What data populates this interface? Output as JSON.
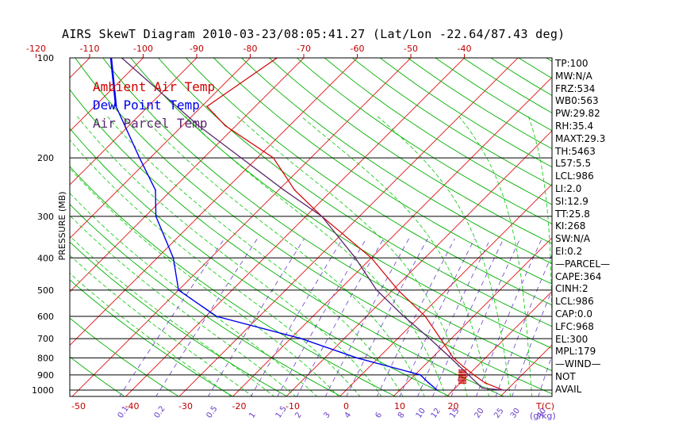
{
  "title": "AIRS SkewT Diagram 2010-03-23/08:05:41.27 (Lat/Lon -22.64/87.43 deg)",
  "colors": {
    "ambient": "#d00000",
    "dewpoint": "#0000ee",
    "parcel": "#5a2a6e",
    "isotherm": "#e01010",
    "dry_adiabat": "#00b000",
    "moist_adiabat": "#00c800",
    "mixing_ratio": "#6a3cc8",
    "isobar": "#000000",
    "bottom_axis": "#c00000"
  },
  "legend": [
    {
      "label": "Ambient Air Temp",
      "color": "#d00000"
    },
    {
      "label": "Dew Point Temp",
      "color": "#0000ee"
    },
    {
      "label": "Air Parcel Temp",
      "color": "#5a2a6e"
    }
  ],
  "stats": [
    "TP:100",
    "MW:N/A",
    "FRZ:534",
    "WB0:563",
    "PW:29.82",
    "RH:35.4",
    "MAXT:29.3",
    "TH:5463",
    "L57:5.5",
    "LCL:986",
    "LI:2.0",
    "SI:12.9",
    "TT:25.8",
    "KI:268",
    "SW:N/A",
    "EI:0.2",
    "—PARCEL—",
    "CAPE:364",
    "CINH:2",
    "LCL:986",
    "CAP:0.0",
    "LFC:968",
    "EL:300",
    "MPL:179",
    "—WIND—",
    "NOT",
    "AVAIL"
  ],
  "chart_data": {
    "type": "line",
    "title": "AIRS SkewT Diagram 2010-03-23/08:05:41.27 (Lat/Lon -22.64/87.43 deg)",
    "ylabel": "PRESSURE (MB)",
    "y_scale": "log",
    "ylim": [
      1050,
      100
    ],
    "pressure_ticks": [
      100,
      200,
      300,
      400,
      500,
      600,
      700,
      800,
      900,
      1000
    ],
    "top_temp_ticks": [
      -120,
      -110,
      -100,
      -90,
      -80,
      -70,
      -60,
      -50,
      -40
    ],
    "bottom_temp_ticks": [
      -50,
      -40,
      -30,
      -20,
      -10,
      0,
      10,
      20
    ],
    "bottom_temp_unit": "T(C)",
    "mixing_ratio_labels": [
      "0.1",
      "0.2",
      "0.5",
      "1",
      "1.5",
      "2",
      "3",
      "4",
      "6",
      "8",
      "10",
      "12",
      "15",
      "20",
      "25",
      "30",
      "40"
    ],
    "mixing_ratio_unit": "g/kg",
    "series": [
      {
        "name": "Ambient Air Temp",
        "points": [
          {
            "p": 1000,
            "t": 29.3
          },
          {
            "p": 950,
            "t": 24.5
          },
          {
            "p": 900,
            "t": 21.0
          },
          {
            "p": 850,
            "t": 17.5
          },
          {
            "p": 800,
            "t": 14.0
          },
          {
            "p": 700,
            "t": 8.0
          },
          {
            "p": 600,
            "t": 1.0
          },
          {
            "p": 500,
            "t": -9.0
          },
          {
            "p": 400,
            "t": -20.0
          },
          {
            "p": 300,
            "t": -37.0
          },
          {
            "p": 250,
            "t": -47.0
          },
          {
            "p": 200,
            "t": -57.0
          },
          {
            "p": 160,
            "t": -72.0
          },
          {
            "p": 140,
            "t": -79.0
          },
          {
            "p": 100,
            "t": -75.0
          }
        ]
      },
      {
        "name": "Dew Point Temp",
        "points": [
          {
            "p": 1000,
            "t": 17.0
          },
          {
            "p": 950,
            "t": 14.0
          },
          {
            "p": 900,
            "t": 11.0
          },
          {
            "p": 800,
            "t": -4.0
          },
          {
            "p": 700,
            "t": -18.0
          },
          {
            "p": 600,
            "t": -38.0
          },
          {
            "p": 500,
            "t": -50.0
          },
          {
            "p": 400,
            "t": -57.0
          },
          {
            "p": 300,
            "t": -68.0
          },
          {
            "p": 250,
            "t": -73.0
          },
          {
            "p": 200,
            "t": -82.0
          },
          {
            "p": 140,
            "t": -96.0
          },
          {
            "p": 100,
            "t": -106.0
          }
        ]
      },
      {
        "name": "Air Parcel Temp",
        "points": [
          {
            "p": 1000,
            "t": 29.3
          },
          {
            "p": 986,
            "t": 25.0
          },
          {
            "p": 900,
            "t": 20.0
          },
          {
            "p": 800,
            "t": 13.5
          },
          {
            "p": 700,
            "t": 6.0
          },
          {
            "p": 600,
            "t": -3.0
          },
          {
            "p": 500,
            "t": -13.0
          },
          {
            "p": 400,
            "t": -23.0
          },
          {
            "p": 300,
            "t": -37.0
          },
          {
            "p": 250,
            "t": -49.0
          },
          {
            "p": 200,
            "t": -63.0
          },
          {
            "p": 160,
            "t": -77.0
          },
          {
            "p": 100,
            "t": -104.0
          }
        ]
      }
    ]
  }
}
